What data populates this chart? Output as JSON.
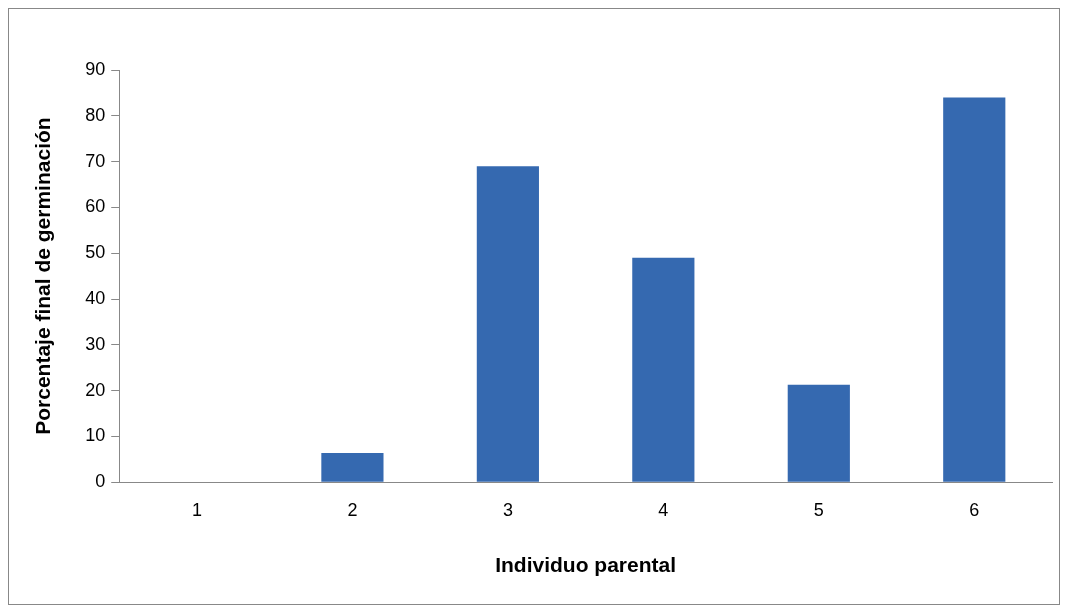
{
  "chart_data": {
    "type": "bar",
    "xlabel": "Individuo parental",
    "ylabel": "Porcentaje final de germinación",
    "categories": [
      "1",
      "2",
      "3",
      "4",
      "5",
      "6"
    ],
    "values": [
      0,
      6.4,
      69,
      49,
      21.3,
      84
    ],
    "color": "#3569b0",
    "ylim": [
      0,
      90
    ],
    "yticks": [
      0,
      10,
      20,
      30,
      40,
      50,
      60,
      70,
      80,
      90
    ],
    "grid": false,
    "legend": false
  }
}
